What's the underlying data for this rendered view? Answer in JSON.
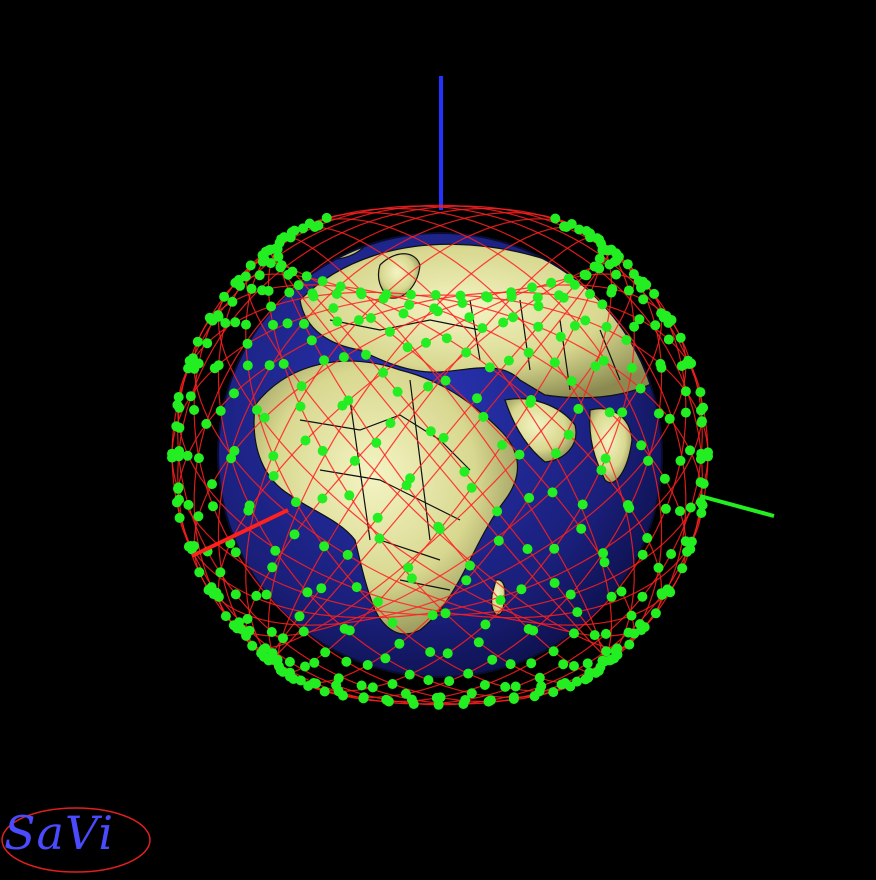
{
  "app": {
    "logo_text": "SaVi",
    "logo_color": "#4a4aff",
    "logo_ring_color": "#e02020"
  },
  "scene": {
    "background": "#000000",
    "ocean_color": "#1a1f7a",
    "land_color": "#e6e6a0",
    "border_color": "#111111",
    "orbit_color": "#ff2020",
    "satellite_color": "#22ee22",
    "axis_colors": {
      "z": "#2233ff",
      "y": "#22ee22",
      "x": "#ff2020"
    }
  }
}
